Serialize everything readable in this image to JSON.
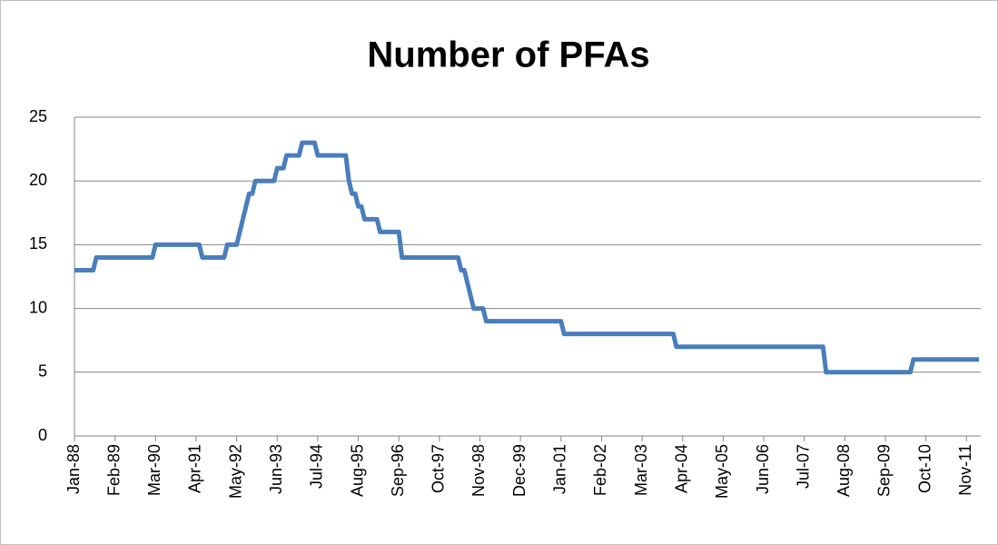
{
  "chart_data": {
    "type": "line",
    "title": "Number of PFAs",
    "categories": [
      "Jan-88",
      null,
      null,
      null,
      null,
      null,
      null,
      null,
      null,
      null,
      null,
      null,
      null,
      "Feb-89",
      null,
      null,
      null,
      null,
      null,
      null,
      null,
      null,
      null,
      null,
      null,
      null,
      "Mar-90",
      null,
      null,
      null,
      null,
      null,
      null,
      null,
      null,
      null,
      null,
      null,
      null,
      "Apr-91",
      null,
      null,
      null,
      null,
      null,
      null,
      null,
      null,
      null,
      null,
      null,
      null,
      "May-92",
      null,
      null,
      null,
      null,
      null,
      null,
      null,
      null,
      null,
      null,
      null,
      null,
      "Jun-93",
      null,
      null,
      null,
      null,
      null,
      null,
      null,
      null,
      null,
      null,
      null,
      null,
      "Jul-94",
      null,
      null,
      null,
      null,
      null,
      null,
      null,
      null,
      null,
      null,
      null,
      null,
      "Aug-95",
      null,
      null,
      null,
      null,
      null,
      null,
      null,
      null,
      null,
      null,
      null,
      null,
      "Sep-96",
      null,
      null,
      null,
      null,
      null,
      null,
      null,
      null,
      null,
      null,
      null,
      null,
      "Oct-97",
      null,
      null,
      null,
      null,
      null,
      null,
      null,
      null,
      null,
      null,
      null,
      null,
      "Nov-98",
      null,
      null,
      null,
      null,
      null,
      null,
      null,
      null,
      null,
      null,
      null,
      null,
      "Dec-99",
      null,
      null,
      null,
      null,
      null,
      null,
      null,
      null,
      null,
      null,
      null,
      null,
      "Jan-01",
      null,
      null,
      null,
      null,
      null,
      null,
      null,
      null,
      null,
      null,
      null,
      null,
      "Feb-02",
      null,
      null,
      null,
      null,
      null,
      null,
      null,
      null,
      null,
      null,
      null,
      null,
      "Mar-03",
      null,
      null,
      null,
      null,
      null,
      null,
      null,
      null,
      null,
      null,
      null,
      null,
      "Apr-04",
      null,
      null,
      null,
      null,
      null,
      null,
      null,
      null,
      null,
      null,
      null,
      null,
      "May-05",
      null,
      null,
      null,
      null,
      null,
      null,
      null,
      null,
      null,
      null,
      null,
      null,
      "Jun-06",
      null,
      null,
      null,
      null,
      null,
      null,
      null,
      null,
      null,
      null,
      null,
      null,
      "Jul-07",
      null,
      null,
      null,
      null,
      null,
      null,
      null,
      null,
      null,
      null,
      null,
      null,
      "Aug-08",
      null,
      null,
      null,
      null,
      null,
      null,
      null,
      null,
      null,
      null,
      null,
      null,
      "Sep-09",
      null,
      null,
      null,
      null,
      null,
      null,
      null,
      null,
      null,
      null,
      null,
      null,
      "Oct-10",
      null,
      null,
      null,
      null,
      null,
      null,
      null,
      null,
      null,
      null,
      null,
      null,
      "Nov-11",
      null,
      null,
      null,
      null
    ],
    "values": [
      13,
      13,
      13,
      13,
      13,
      13,
      13,
      14,
      14,
      14,
      14,
      14,
      14,
      14,
      14,
      14,
      14,
      14,
      14,
      14,
      14,
      14,
      14,
      14,
      14,
      14,
      15,
      15,
      15,
      15,
      15,
      15,
      15,
      15,
      15,
      15,
      15,
      15,
      15,
      15,
      15,
      14,
      14,
      14,
      14,
      14,
      14,
      14,
      14,
      15,
      15,
      15,
      15,
      16,
      17,
      18,
      19,
      19,
      20,
      20,
      20,
      20,
      20,
      20,
      20,
      21,
      21,
      21,
      22,
      22,
      22,
      22,
      22,
      23,
      23,
      23,
      23,
      23,
      22,
      22,
      22,
      22,
      22,
      22,
      22,
      22,
      22,
      22,
      20,
      19,
      19,
      18,
      18,
      17,
      17,
      17,
      17,
      17,
      16,
      16,
      16,
      16,
      16,
      16,
      16,
      14,
      14,
      14,
      14,
      14,
      14,
      14,
      14,
      14,
      14,
      14,
      14,
      14,
      14,
      14,
      14,
      14,
      14,
      14,
      13,
      13,
      12,
      11,
      10,
      10,
      10,
      10,
      9,
      9,
      9,
      9,
      9,
      9,
      9,
      9,
      9,
      9,
      9,
      9,
      9,
      9,
      9,
      9,
      9,
      9,
      9,
      9,
      9,
      9,
      9,
      9,
      9,
      8,
      8,
      8,
      8,
      8,
      8,
      8,
      8,
      8,
      8,
      8,
      8,
      8,
      8,
      8,
      8,
      8,
      8,
      8,
      8,
      8,
      8,
      8,
      8,
      8,
      8,
      8,
      8,
      8,
      8,
      8,
      8,
      8,
      8,
      8,
      8,
      7,
      7,
      7,
      7,
      7,
      7,
      7,
      7,
      7,
      7,
      7,
      7,
      7,
      7,
      7,
      7,
      7,
      7,
      7,
      7,
      7,
      7,
      7,
      7,
      7,
      7,
      7,
      7,
      7,
      7,
      7,
      7,
      7,
      7,
      7,
      7,
      7,
      7,
      7,
      7,
      7,
      7,
      7,
      7,
      7,
      7,
      7,
      7,
      5,
      5,
      5,
      5,
      5,
      5,
      5,
      5,
      5,
      5,
      5,
      5,
      5,
      5,
      5,
      5,
      5,
      5,
      5,
      5,
      5,
      5,
      5,
      5,
      5,
      5,
      5,
      5,
      6,
      6,
      6,
      6,
      6,
      6,
      6,
      6,
      6,
      6,
      6,
      6,
      6,
      6,
      6,
      6,
      6,
      6,
      6,
      6,
      6,
      6
    ],
    "color": "#4a7ebb",
    "ylim": [
      0,
      25
    ],
    "yticks": [
      0,
      5,
      10,
      15,
      20,
      25
    ],
    "grid": true
  }
}
